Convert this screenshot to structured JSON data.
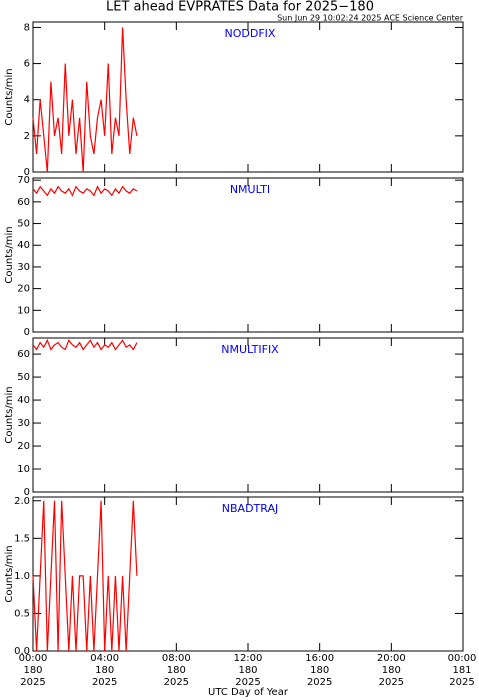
{
  "header": {
    "title": "LET ahead EVPRATES Data for 2025−180",
    "timestamp": "Sun Jun 29 10:02:24 2025 ACE Science Center"
  },
  "chart_data": [
    {
      "type": "line",
      "label": "NODDFIX",
      "ylabel": "Counts/min",
      "ylim": [
        0,
        8.3
      ],
      "yticks": [
        0,
        2,
        4,
        6,
        8
      ],
      "x": [
        0,
        0.2,
        0.4,
        0.6,
        0.8,
        1,
        1.2,
        1.4,
        1.6,
        1.8,
        2,
        2.2,
        2.4,
        2.6,
        2.8,
        3,
        3.2,
        3.4,
        3.6,
        3.8,
        4,
        4.2,
        4.4,
        4.6,
        4.8,
        5,
        5.2,
        5.4,
        5.6,
        5.8
      ],
      "series": [
        {
          "name": "NODDFIX",
          "color": "#ff0000",
          "values": [
            3,
            1,
            4,
            2,
            0,
            5,
            2,
            3,
            1,
            6,
            2,
            4,
            1,
            3,
            0,
            5,
            2,
            1,
            3,
            4,
            2,
            6,
            1,
            3,
            2,
            8,
            4,
            1,
            3,
            2
          ]
        }
      ]
    },
    {
      "type": "line",
      "label": "NMULTI",
      "ylabel": "Counts/min",
      "ylim": [
        0,
        71
      ],
      "yticks": [
        0,
        10,
        20,
        30,
        40,
        50,
        60,
        70
      ],
      "x": [
        0,
        0.2,
        0.4,
        0.6,
        0.8,
        1,
        1.2,
        1.4,
        1.6,
        1.8,
        2,
        2.2,
        2.4,
        2.6,
        2.8,
        3,
        3.2,
        3.4,
        3.6,
        3.8,
        4,
        4.2,
        4.4,
        4.6,
        4.8,
        5,
        5.2,
        5.4,
        5.6,
        5.8
      ],
      "series": [
        {
          "name": "NMULTI",
          "color": "#ff0000",
          "values": [
            66,
            64,
            67,
            65,
            63,
            66,
            64,
            67,
            65,
            64,
            66,
            63,
            67,
            65,
            64,
            66,
            65,
            63,
            67,
            64,
            66,
            65,
            63,
            66,
            64,
            67,
            65,
            64,
            66,
            65
          ]
        }
      ]
    },
    {
      "type": "line",
      "label": "NMULTIFIX",
      "ylabel": "Counts/min",
      "ylim": [
        0,
        67
      ],
      "yticks": [
        0,
        10,
        20,
        30,
        40,
        50,
        60
      ],
      "x": [
        0,
        0.2,
        0.4,
        0.6,
        0.8,
        1,
        1.2,
        1.4,
        1.6,
        1.8,
        2,
        2.2,
        2.4,
        2.6,
        2.8,
        3,
        3.2,
        3.4,
        3.6,
        3.8,
        4,
        4.2,
        4.4,
        4.6,
        4.8,
        5,
        5.2,
        5.4,
        5.6,
        5.8
      ],
      "series": [
        {
          "name": "NMULTIFIX",
          "color": "#ff0000",
          "values": [
            64,
            62,
            65,
            63,
            66,
            62,
            64,
            65,
            63,
            62,
            66,
            64,
            63,
            65,
            62,
            64,
            66,
            63,
            65,
            62,
            64,
            63,
            65,
            62,
            64,
            66,
            63,
            64,
            62,
            65
          ]
        }
      ]
    },
    {
      "type": "line",
      "label": "NBADTRAJ",
      "ylabel": "Counts/min",
      "ylim": [
        0,
        2.05
      ],
      "yticks": [
        {
          "value": 0,
          "label": "0.0"
        },
        {
          "value": 0.5,
          "label": "0.5"
        },
        {
          "value": 1,
          "label": "1.0"
        },
        {
          "value": 1.5,
          "label": "1.5"
        },
        {
          "value": 2,
          "label": "2.0"
        }
      ],
      "x": [
        0,
        0.2,
        0.4,
        0.6,
        0.8,
        1,
        1.2,
        1.4,
        1.6,
        1.8,
        2,
        2.2,
        2.4,
        2.6,
        2.8,
        3,
        3.2,
        3.4,
        3.6,
        3.8,
        4,
        4.2,
        4.4,
        4.6,
        4.8,
        5,
        5.2,
        5.4,
        5.6,
        5.8
      ],
      "series": [
        {
          "name": "NBADTRAJ",
          "color": "#ff0000",
          "values": [
            1,
            0,
            1,
            2,
            0,
            1,
            2,
            0,
            2,
            1,
            0,
            1,
            0,
            1,
            1,
            0,
            1,
            0,
            1,
            2,
            0,
            1,
            0,
            1,
            0,
            1,
            0,
            1,
            2,
            1
          ]
        }
      ],
      "xlabel": "UTC Day of Year",
      "xlim": [
        0,
        24
      ],
      "xticks": [
        {
          "value": 0,
          "label": [
            "00:00",
            "180",
            "2025"
          ]
        },
        {
          "value": 4,
          "label": [
            "04:00",
            "180",
            "2025"
          ]
        },
        {
          "value": 8,
          "label": [
            "08:00",
            "180",
            "2025"
          ]
        },
        {
          "value": 12,
          "label": [
            "12:00",
            "180",
            "2025"
          ]
        },
        {
          "value": 16,
          "label": [
            "16:00",
            "180",
            "2025"
          ]
        },
        {
          "value": 20,
          "label": [
            "20:00",
            "180",
            "2025"
          ]
        },
        {
          "value": 24,
          "label": [
            "00:00",
            "181",
            "2025"
          ]
        }
      ]
    }
  ]
}
